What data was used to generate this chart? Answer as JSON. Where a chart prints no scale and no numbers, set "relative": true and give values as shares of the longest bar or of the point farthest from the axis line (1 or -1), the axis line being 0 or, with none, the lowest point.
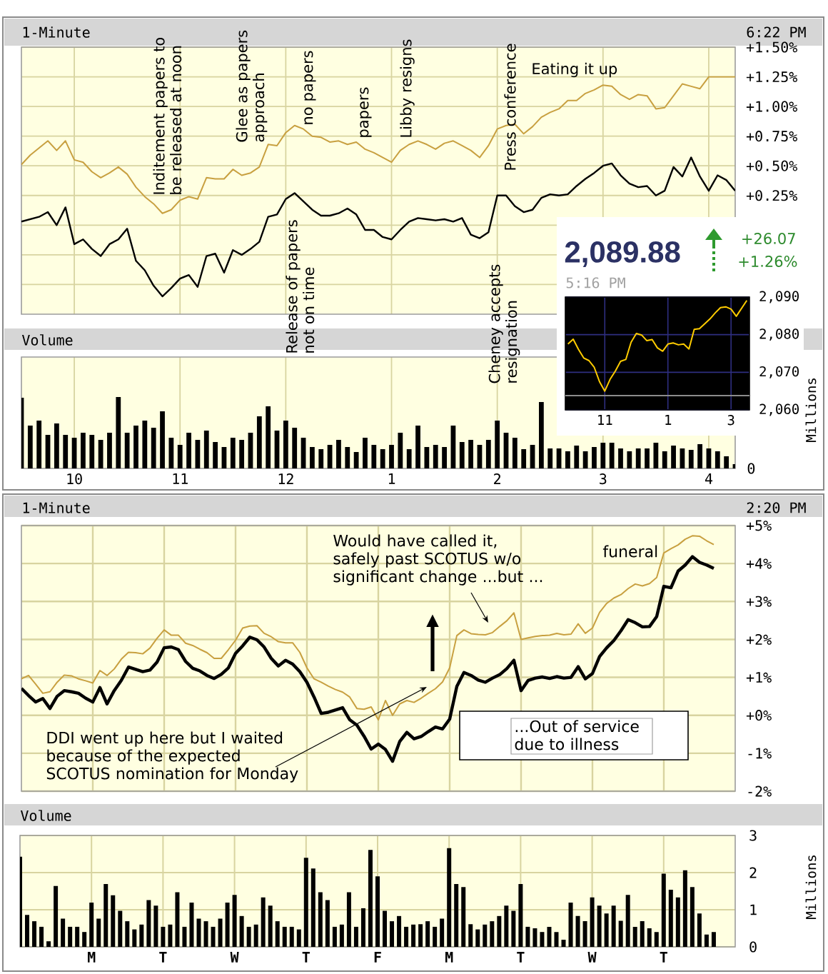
{
  "chart_data": [
    {
      "type": "line",
      "title": "1-Minute",
      "subtitle": "6:22 PM",
      "categories": [
        null,
        null,
        null,
        null,
        null,
        null,
        null,
        null,
        null,
        null,
        null,
        null,
        null,
        null,
        null,
        null,
        null,
        null,
        null,
        null,
        null,
        null,
        null,
        null,
        null,
        null,
        null,
        null,
        null,
        null,
        null,
        null,
        null,
        null,
        null,
        null,
        null,
        null,
        null,
        null,
        null,
        null,
        null,
        null,
        null,
        null,
        null,
        null,
        null,
        null,
        null,
        null,
        null,
        null,
        null,
        null,
        null,
        null,
        null,
        null,
        null,
        null,
        null,
        null,
        null,
        null,
        null,
        null,
        null,
        null,
        null,
        null,
        null,
        null,
        null,
        null,
        null,
        null,
        null,
        null,
        null,
        null
      ],
      "ylim": [
        -0.75,
        1.5
      ],
      "yticks": [
        {
          "value": -0.5,
          "label": null
        },
        {
          "value": -0.25,
          "label": null
        },
        {
          "value": 0,
          "label": null
        },
        {
          "value": 0.25,
          "label": "+0.25%"
        },
        {
          "value": 0.5,
          "label": "+0.50%"
        },
        {
          "value": 0.75,
          "label": "+0.75%"
        },
        {
          "value": 1,
          "label": "+1.00%"
        },
        {
          "value": 1.25,
          "label": "+1.25%"
        },
        {
          "value": 1.5,
          "label": "+1.50%"
        }
      ],
      "grid": true,
      "series": [
        {
          "color": "#000000",
          "values": [
            0.03,
            0.05,
            0.07,
            0.11,
            0.0,
            0.15,
            -0.16,
            -0.12,
            -0.2,
            -0.26,
            -0.16,
            -0.12,
            -0.03,
            -0.3,
            -0.38,
            -0.51,
            -0.6,
            -0.53,
            -0.45,
            -0.42,
            -0.52,
            -0.26,
            -0.24,
            -0.4,
            -0.21,
            -0.25,
            -0.2,
            -0.14,
            0.07,
            0.09,
            0.22,
            0.27,
            0.2,
            0.13,
            0.08,
            0.08,
            0.1,
            0.14,
            0.09,
            -0.04,
            -0.04,
            -0.1,
            -0.12,
            -0.04,
            0.03,
            0.06,
            0.05,
            0.04,
            0.05,
            0.03,
            0.06,
            -0.08,
            -0.11,
            -0.06,
            0.25,
            0.25,
            0.16,
            0.11,
            0.13,
            0.23,
            0.26,
            0.25,
            0.26,
            0.33,
            0.39,
            0.44,
            0.5,
            0.52,
            0.42,
            0.35,
            0.32,
            0.33,
            0.25,
            0.29,
            0.49,
            0.41,
            0.57,
            0.41,
            0.29,
            0.42,
            0.38,
            0.29
          ]
        },
        {
          "color": "#c8a040",
          "values": [
            0.51,
            0.59,
            0.65,
            0.71,
            0.63,
            0.71,
            0.55,
            0.53,
            0.45,
            0.4,
            0.44,
            0.49,
            0.43,
            0.32,
            0.24,
            0.18,
            0.1,
            0.13,
            0.21,
            0.24,
            0.22,
            0.4,
            0.39,
            0.39,
            0.47,
            0.42,
            0.44,
            0.49,
            0.68,
            0.67,
            0.78,
            0.84,
            0.81,
            0.75,
            0.74,
            0.7,
            0.71,
            0.68,
            0.7,
            0.64,
            0.61,
            0.57,
            0.53,
            0.63,
            0.68,
            0.71,
            0.68,
            0.64,
            0.69,
            0.71,
            0.67,
            0.63,
            0.57,
            0.67,
            0.81,
            0.84,
            0.85,
            0.77,
            0.83,
            0.91,
            0.95,
            0.98,
            1.05,
            1.05,
            1.11,
            1.14,
            1.18,
            1.17,
            1.1,
            1.06,
            1.1,
            1.09,
            0.98,
            0.99,
            1.09,
            1.19,
            1.17,
            1.15,
            1.25,
            1.25,
            1.25,
            1.25
          ]
        }
      ],
      "annotations": [
        "Inditement papers to be released at noon",
        "Glee as papers approach",
        "Release of papers not on time",
        "no papers",
        "papers",
        "Libby resigns",
        "Cheney accepts resignation",
        "Press conference",
        "Eating it up"
      ]
    },
    {
      "type": "line",
      "title": "2,089.88",
      "subtitle": "5:16 PM",
      "categories": [
        null,
        null,
        null,
        null,
        null,
        null,
        null,
        "11",
        null,
        null,
        null,
        null,
        null,
        null,
        null,
        null,
        null,
        null,
        null,
        "1",
        null,
        null,
        null,
        null,
        null,
        null,
        null,
        null,
        null,
        null,
        null,
        "3",
        null,
        null,
        null
      ],
      "ylim": [
        2060,
        2090
      ],
      "yticks": [
        {
          "value": 2060,
          "label": "2,060"
        },
        {
          "value": 2070,
          "label": "2,070"
        },
        {
          "value": 2080,
          "label": "2,080"
        },
        {
          "value": 2090,
          "label": "2,090"
        }
      ],
      "grid": true,
      "ref_lines": [
        {
          "axis": "y",
          "value": 2063.8,
          "color": "#8c8c8c"
        }
      ],
      "series": [
        {
          "color": "#ffcc00",
          "values": [
            2077.5,
            2078.8,
            2076.1,
            2073.8,
            2073.1,
            2071.3,
            2067.5,
            2065.0,
            2068.1,
            2070.3,
            2072.9,
            2073.4,
            2078.0,
            2080.3,
            2079.9,
            2078.4,
            2078.7,
            2076.5,
            2075.6,
            2077.5,
            2077.8,
            2077.3,
            2077.5,
            2076.2,
            2081.4,
            2081.6,
            2082.9,
            2084.2,
            2085.8,
            2087.2,
            2087.4,
            2086.8,
            2084.9,
            2087.0,
            2089.1
          ]
        }
      ],
      "annotations": [
        "+26.07",
        "+1.26%"
      ]
    },
    {
      "type": "bar",
      "title": "Volume",
      "ylabel": "Millions",
      "relative": true,
      "color": "#000000",
      "categories": [
        null,
        null,
        null,
        null,
        null,
        null,
        "10",
        null,
        null,
        null,
        null,
        null,
        null,
        null,
        null,
        null,
        null,
        null,
        "11",
        null,
        null,
        null,
        null,
        null,
        null,
        null,
        null,
        null,
        null,
        null,
        "12",
        null,
        null,
        null,
        null,
        null,
        null,
        null,
        null,
        null,
        null,
        null,
        "1",
        null,
        null,
        null,
        null,
        null,
        null,
        null,
        null,
        null,
        null,
        null,
        "2",
        null,
        null,
        null,
        null,
        null,
        null,
        null,
        null,
        null,
        null,
        null,
        "3",
        null,
        null,
        null,
        null,
        null,
        null,
        null,
        null,
        null,
        null,
        null,
        "4",
        null,
        null,
        null
      ],
      "grid": "x",
      "values": [
        0.99,
        0.6,
        0.67,
        0.47,
        0.63,
        0.47,
        0.43,
        0.5,
        0.47,
        0.4,
        0.5,
        1.0,
        0.5,
        0.6,
        0.67,
        0.57,
        0.8,
        0.43,
        0.33,
        0.5,
        0.4,
        0.53,
        0.37,
        0.3,
        0.43,
        0.4,
        0.5,
        0.73,
        0.87,
        0.53,
        0.67,
        0.57,
        0.43,
        0.3,
        0.27,
        0.33,
        0.4,
        0.3,
        0.23,
        0.43,
        0.33,
        0.27,
        0.33,
        0.5,
        0.27,
        0.6,
        0.3,
        0.33,
        0.3,
        0.6,
        0.37,
        0.4,
        0.33,
        0.4,
        0.67,
        0.5,
        0.43,
        0.27,
        0.33,
        0.93,
        0.28,
        0.28,
        0.24,
        0.32,
        0.24,
        0.3,
        0.36,
        0.36,
        0.28,
        0.24,
        0.28,
        0.28,
        0.36,
        0.24,
        0.32,
        0.28,
        0.26,
        0.34,
        0.28,
        0.24,
        0.17,
        0.06
      ],
      "annotations": [
        "0"
      ]
    },
    {
      "type": "line",
      "title": "1-Minute",
      "subtitle": "2:20 PM",
      "categories": [
        null,
        null,
        null,
        null,
        null,
        null,
        null,
        null,
        null,
        null,
        null,
        null,
        null,
        null,
        null,
        null,
        null,
        null,
        null,
        null,
        null,
        null,
        null,
        null,
        null,
        null,
        null,
        null,
        null,
        null,
        null,
        null,
        null,
        null,
        null,
        null,
        null,
        null,
        null,
        null,
        null,
        null,
        null,
        null,
        null,
        null,
        null,
        null,
        null,
        null,
        null,
        null,
        null,
        null,
        null,
        null,
        null,
        null,
        null,
        null,
        null,
        null,
        null,
        null,
        null,
        null,
        null,
        null,
        null,
        null,
        null,
        null,
        null,
        null,
        null,
        null,
        null,
        null,
        null,
        null,
        null,
        null,
        null,
        null,
        null,
        null,
        null,
        null,
        null,
        null,
        null,
        null,
        null,
        null,
        null,
        null,
        null,
        null,
        null,
        null,
        null
      ],
      "ylim": [
        -2,
        5
      ],
      "yticks": [
        {
          "value": -2,
          "label": "-2%"
        },
        {
          "value": -1,
          "label": "-1%"
        },
        {
          "value": 0,
          "label": "+0%"
        },
        {
          "value": 1,
          "label": "+1%"
        },
        {
          "value": 2,
          "label": "+2%"
        },
        {
          "value": 3,
          "label": "+3%"
        },
        {
          "value": 4,
          "label": "+4%"
        },
        {
          "value": 5,
          "label": "+5%"
        }
      ],
      "grid": true,
      "series": [
        {
          "color": "#000000",
          "values": [
            0.71,
            0.52,
            0.35,
            0.44,
            0.18,
            0.5,
            0.65,
            0.62,
            0.58,
            0.45,
            0.35,
            0.73,
            0.3,
            0.65,
            0.92,
            1.27,
            1.21,
            1.15,
            1.19,
            1.4,
            1.78,
            1.8,
            1.73,
            1.42,
            1.24,
            1.17,
            1.05,
            0.97,
            1.08,
            1.25,
            1.63,
            1.83,
            2.06,
            1.99,
            1.8,
            1.5,
            1.3,
            1.45,
            1.35,
            1.15,
            0.87,
            0.48,
            0.05,
            0.08,
            0.14,
            0.2,
            -0.12,
            -0.26,
            -0.55,
            -0.89,
            -0.76,
            -0.9,
            -1.21,
            -0.69,
            -0.45,
            -0.62,
            -0.56,
            -0.43,
            -0.31,
            -0.36,
            -0.1,
            0.76,
            1.13,
            1.05,
            0.93,
            0.87,
            0.98,
            1.07,
            1.23,
            1.45,
            0.65,
            0.92,
            0.98,
            1.01,
            0.97,
            1.02,
            0.98,
            1.0,
            1.28,
            0.96,
            1.1,
            1.55,
            1.78,
            1.97,
            2.23,
            2.52,
            2.44,
            2.33,
            2.34,
            2.6,
            3.4,
            3.36,
            3.8,
            3.96,
            4.18,
            4.03,
            3.96,
            3.87,
            null,
            null,
            null
          ]
        },
        {
          "color": "#c8a040",
          "values": [
            0.96,
            1.05,
            0.82,
            0.58,
            0.62,
            0.87,
            1.06,
            1.04,
            0.96,
            0.91,
            0.85,
            1.18,
            1.05,
            1.22,
            1.48,
            1.66,
            1.65,
            1.62,
            1.77,
            2.03,
            2.25,
            2.11,
            2.11,
            1.9,
            1.84,
            1.74,
            1.65,
            1.5,
            1.5,
            1.73,
            1.98,
            2.3,
            2.35,
            2.36,
            2.16,
            2.07,
            1.94,
            1.91,
            1.91,
            1.66,
            1.25,
            0.96,
            0.87,
            0.77,
            0.68,
            0.61,
            0.48,
            0.18,
            0.16,
            0.22,
            -0.12,
            0.39,
            0.0,
            0.3,
            0.39,
            0.34,
            0.45,
            0.58,
            0.7,
            0.88,
            1.25,
            2.1,
            2.25,
            2.15,
            2.13,
            2.12,
            2.18,
            2.34,
            2.49,
            2.7,
            2.0,
            2.04,
            2.08,
            2.1,
            2.11,
            2.16,
            2.12,
            2.14,
            2.41,
            2.16,
            2.3,
            2.71,
            2.95,
            3.09,
            3.18,
            3.34,
            3.46,
            3.41,
            3.47,
            3.63,
            4.28,
            4.39,
            4.49,
            4.64,
            4.73,
            4.72,
            4.6,
            4.5,
            null,
            null,
            null
          ]
        }
      ],
      "annotations": [
        "DDI went up here but I waited because of the expected SCOTUS nomination for Monday",
        "Would have called it, safely past SCOTUS w/o significant change ...but ...",
        "funeral",
        "...Out of service due to illness"
      ]
    },
    {
      "type": "bar",
      "title": "Volume",
      "ylabel": "Millions",
      "color": "#000000",
      "categories": [
        null,
        null,
        null,
        null,
        null,
        null,
        null,
        null,
        null,
        null,
        "M",
        null,
        null,
        null,
        null,
        null,
        null,
        null,
        null,
        null,
        "T",
        null,
        null,
        null,
        null,
        null,
        null,
        null,
        null,
        null,
        "W",
        null,
        null,
        null,
        null,
        null,
        null,
        null,
        null,
        null,
        "T",
        null,
        null,
        null,
        null,
        null,
        null,
        null,
        null,
        null,
        "F",
        null,
        null,
        null,
        null,
        null,
        null,
        null,
        null,
        null,
        "M",
        null,
        null,
        null,
        null,
        null,
        null,
        null,
        null,
        null,
        "T",
        null,
        null,
        null,
        null,
        null,
        null,
        null,
        null,
        null,
        "W",
        null,
        null,
        null,
        null,
        null,
        null,
        null,
        null,
        null,
        "T",
        null,
        null,
        null,
        null,
        null,
        null,
        null,
        null,
        null,
        null
      ],
      "ylim": [
        0,
        3
      ],
      "yticks": [
        0,
        1,
        2,
        3
      ],
      "grid": true,
      "values": [
        2.43,
        0.86,
        0.69,
        0.54,
        0.15,
        1.64,
        0.76,
        0.54,
        0.54,
        0.4,
        1.19,
        0.76,
        1.69,
        1.39,
        0.97,
        0.69,
        0.47,
        0.6,
        1.26,
        1.11,
        0.54,
        0.6,
        1.47,
        0.54,
        1.19,
        0.76,
        0.69,
        0.54,
        0.76,
        1.19,
        1.4,
        0.83,
        0.54,
        0.6,
        1.33,
        1.11,
        0.69,
        0.54,
        0.54,
        0.47,
        2.4,
        2.11,
        1.47,
        1.26,
        0.54,
        0.6,
        1.47,
        0.54,
        1.04,
        2.61,
        1.9,
        0.97,
        0.69,
        0.83,
        0.54,
        0.6,
        0.61,
        0.69,
        0.54,
        0.76,
        2.66,
        1.69,
        1.61,
        0.61,
        0.47,
        0.6,
        0.69,
        0.83,
        1.11,
        0.97,
        1.69,
        0.54,
        0.5,
        0.4,
        0.54,
        0.4,
        0.19,
        1.19,
        0.83,
        0.69,
        1.33,
        1.11,
        0.9,
        1.11,
        0.7,
        1.4,
        0.54,
        0.69,
        0.5,
        0.4,
        1.97,
        1.54,
        1.33,
        2.06,
        1.61,
        0.9,
        0.33,
        0.4,
        null,
        null,
        null
      ]
    }
  ]
}
